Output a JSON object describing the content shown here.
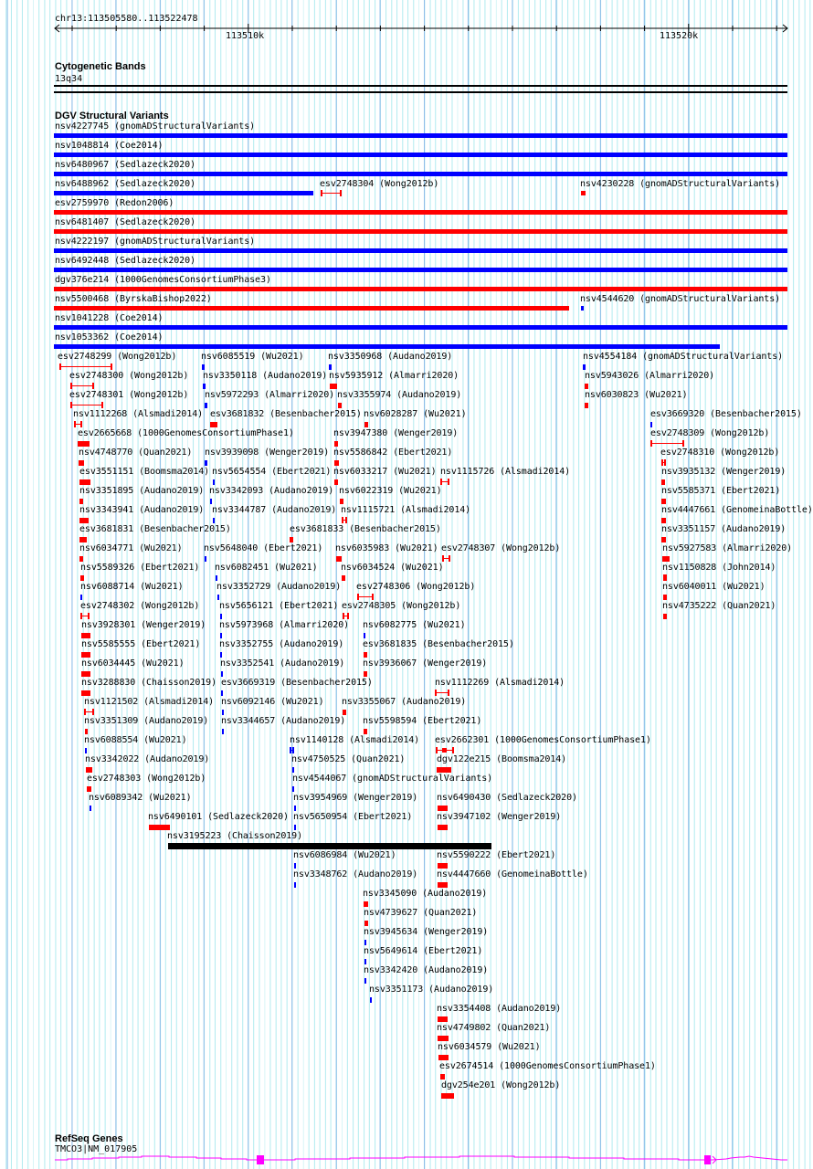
{
  "ruler": {
    "location": "chr13:113505580..113522478",
    "tick_labels": [
      "113510k",
      "113520k"
    ]
  },
  "cytoband": {
    "title": "Cytogenetic Bands",
    "band": "13q34"
  },
  "dgv": {
    "title": "DGV Structural Variants",
    "colors": {
      "gain": "#0000ff",
      "loss": "#ff0000",
      "other": "#000000"
    },
    "variants": [
      "nsv4227745 (gnomADStructuralVariants)",
      "nsv1048814 (Coe2014)",
      "nsv6480967 (Sedlazeck2020)",
      "nsv6488962 (Sedlazeck2020)",
      "esv2748304 (Wong2012b)",
      "nsv4230228 (gnomADStructuralVariants)",
      "esv2759970 (Redon2006)",
      "nsv6481407 (Sedlazeck2020)",
      "nsv4222197 (gnomADStructuralVariants)",
      "nsv6492448 (Sedlazeck2020)",
      "dgv376e214 (1000GenomesConsortiumPhase3)",
      "nsv5500468 (ByrskaBishop2022)",
      "nsv4544620 (gnomADStructuralVariants)",
      "nsv1041228 (Coe2014)",
      "nsv1053362 (Coe2014)",
      "esv2748299 (Wong2012b)",
      "nsv6085519 (Wu2021)",
      "nsv3350968 (Audano2019)",
      "nsv4554184 (gnomADStructuralVariants)",
      "esv2748300 (Wong2012b)",
      "nsv3350118 (Audano2019)",
      "nsv5935912 (Almarri2020)",
      "nsv5943026 (Almarri2020)",
      "esv2748301 (Wong2012b)",
      "nsv5972293 (Almarri2020)",
      "nsv3355974 (Audano2019)",
      "nsv6030823 (Wu2021)",
      "nsv1112268 (Alsmadi2014)",
      "esv3681832 (Besenbacher2015)",
      "nsv6028287 (Wu2021)",
      "esv3669320 (Besenbacher2015)",
      "esv2665668 (1000GenomesConsortiumPhase1)",
      "nsv3947380 (Wenger2019)",
      "esv2748309 (Wong2012b)",
      "nsv4748770 (Quan2021)",
      "nsv3939098 (Wenger2019)",
      "nsv5586842 (Ebert2021)",
      "esv2748310 (Wong2012b)",
      "esv3551151 (Boomsma2014)",
      "nsv5654554 (Ebert2021)",
      "nsv6033217 (Wu2021)",
      "nsv1115726 (Alsmadi2014)",
      "nsv3935132 (Wenger2019)",
      "nsv3351895 (Audano2019)",
      "nsv3342093 (Audano2019)",
      "nsv6022319 (Wu2021)",
      "nsv5585371 (Ebert2021)",
      "nsv3343941 (Audano2019)",
      "nsv3344787 (Audano2019)",
      "nsv1115721 (Alsmadi2014)",
      "nsv4447661 (GenomeinaBottle)",
      "esv3681831 (Besenbacher2015)",
      "esv3681833 (Besenbacher2015)",
      "nsv3351157 (Audano2019)",
      "nsv6034771 (Wu2021)",
      "nsv5648040 (Ebert2021)",
      "nsv6035983 (Wu2021)",
      "esv2748307 (Wong2012b)",
      "nsv5927583 (Almarri2020)",
      "nsv5589326 (Ebert2021)",
      "nsv6082451 (Wu2021)",
      "nsv6034524 (Wu2021)",
      "nsv1150828 (John2014)",
      "nsv6088714 (Wu2021)",
      "nsv3352729 (Audano2019)",
      "esv2748306 (Wong2012b)",
      "nsv6040011 (Wu2021)",
      "esv2748302 (Wong2012b)",
      "nsv5656121 (Ebert2021)",
      "esv2748305 (Wong2012b)",
      "nsv4735222 (Quan2021)",
      "nsv3928301 (Wenger2019)",
      "nsv5973968 (Almarri2020)",
      "nsv6082775 (Wu2021)",
      "nsv5585555 (Ebert2021)",
      "nsv3352755 (Audano2019)",
      "esv3681835 (Besenbacher2015)",
      "nsv6034445 (Wu2021)",
      "nsv3352541 (Audano2019)",
      "nsv3936067 (Wenger2019)",
      "nsv3288830 (Chaisson2019)",
      "esv3669319 (Besenbacher2015)",
      "nsv1112269 (Alsmadi2014)",
      "nsv1121502 (Alsmadi2014)",
      "nsv6092146 (Wu2021)",
      "nsv3355067 (Audano2019)",
      "nsv3351309 (Audano2019)",
      "nsv3344657 (Audano2019)",
      "nsv5598594 (Ebert2021)",
      "nsv6088554 (Wu2021)",
      "nsv1140128 (Alsmadi2014)",
      "esv2662301 (1000GenomesConsortiumPhase1)",
      "nsv3342022 (Audano2019)",
      "nsv4750525 (Quan2021)",
      "dgv122e215 (Boomsma2014)",
      "esv2748303 (Wong2012b)",
      "nsv4544067 (gnomADStructuralVariants)",
      "nsv6089342 (Wu2021)",
      "nsv3954969 (Wenger2019)",
      "nsv6490430 (Sedlazeck2020)",
      "nsv6490101 (Sedlazeck2020)",
      "nsv5650954 (Ebert2021)",
      "nsv3947102 (Wenger2019)",
      "nsv3195223 (Chaisson2019)",
      "nsv6086984 (Wu2021)",
      "nsv5590222 (Ebert2021)",
      "nsv3348762 (Audano2019)",
      "nsv4447660 (GenomeinaBottle)",
      "nsv3345090 (Audano2019)",
      "nsv4739627 (Quan2021)",
      "nsv3945634 (Wenger2019)",
      "nsv5649614 (Ebert2021)",
      "nsv3342420 (Audano2019)",
      "nsv3351173 (Audano2019)",
      "nsv3354408 (Audano2019)",
      "nsv4749802 (Quan2021)",
      "nsv6034579 (Wu2021)",
      "esv2674514 (1000GenomesConsortiumPhase1)",
      "dgv254e201 (Wong2012b)"
    ]
  },
  "refseq": {
    "title": "RefSeq Genes",
    "gene": "TMCO3|NM_017905",
    "color": "#ff00ff"
  }
}
